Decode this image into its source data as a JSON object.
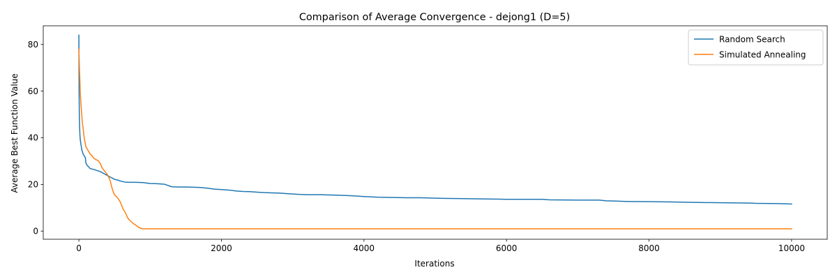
{
  "chart_data": {
    "type": "line",
    "title": "Comparison of Average Convergence - dejong1 (D=5)",
    "xlabel": "Iterations",
    "ylabel": "Average Best Function Value",
    "xlim": [
      -500,
      10500
    ],
    "ylim": [
      -3.5,
      88
    ],
    "xticks": [
      0,
      2000,
      4000,
      6000,
      8000,
      10000
    ],
    "xtick_labels": [
      "0",
      "2000",
      "4000",
      "6000",
      "8000",
      "10000"
    ],
    "yticks": [
      0,
      20,
      40,
      60,
      80
    ],
    "ytick_labels": [
      "0",
      "20",
      "40",
      "60",
      "80"
    ],
    "grid": false,
    "legend_position": "top-right",
    "series": [
      {
        "name": "Random Search",
        "color": "#1f77b4",
        "x": [
          0,
          3,
          6,
          10,
          15,
          20,
          30,
          40,
          50,
          60,
          70,
          90,
          100,
          120,
          140,
          150,
          160,
          200,
          250,
          300,
          330,
          360,
          400,
          450,
          500,
          550,
          600,
          650,
          700,
          800,
          900,
          1000,
          1100,
          1200,
          1300,
          1400,
          1500,
          1600,
          1700,
          1800,
          1900,
          2000,
          2100,
          2200,
          2300,
          2400,
          2500,
          2600,
          2700,
          2800,
          2900,
          3000,
          3100,
          3200,
          3300,
          3400,
          3500,
          3600,
          3700,
          3800,
          3900,
          4000,
          4200,
          4400,
          4600,
          4800,
          5000,
          5200,
          5400,
          5600,
          5900,
          6000,
          6200,
          6500,
          6600,
          7000,
          7300,
          7400,
          7700,
          8000,
          8300,
          8600,
          8900,
          9200,
          9400,
          9500,
          9800,
          10000
        ],
        "values": [
          84,
          60,
          50,
          45,
          41,
          39,
          37,
          35,
          34,
          33,
          32.5,
          31.5,
          29,
          28,
          27.5,
          27,
          26.8,
          26.5,
          26,
          25.5,
          25,
          24.5,
          23.8,
          23,
          22.2,
          21.8,
          21.3,
          21,
          20.9,
          20.9,
          20.8,
          20.4,
          20.3,
          20.1,
          19.0,
          18.9,
          18.9,
          18.8,
          18.7,
          18.4,
          18.0,
          17.8,
          17.6,
          17.2,
          17.0,
          16.9,
          16.7,
          16.5,
          16.4,
          16.3,
          16.1,
          15.9,
          15.7,
          15.6,
          15.6,
          15.6,
          15.5,
          15.4,
          15.3,
          15.2,
          15.0,
          14.8,
          14.5,
          14.4,
          14.3,
          14.3,
          14.1,
          14.0,
          13.9,
          13.8,
          13.7,
          13.6,
          13.6,
          13.6,
          13.4,
          13.3,
          13.3,
          13.0,
          12.7,
          12.6,
          12.5,
          12.3,
          12.2,
          12.1,
          12.0,
          11.9,
          11.8,
          11.6
        ]
      },
      {
        "name": "Simulated Annealing",
        "color": "#ff7f0e",
        "x": [
          0,
          10,
          20,
          30,
          40,
          50,
          60,
          70,
          80,
          100,
          120,
          140,
          160,
          180,
          200,
          220,
          250,
          270,
          300,
          320,
          340,
          360,
          380,
          400,
          420,
          440,
          460,
          480,
          500,
          520,
          550,
          580,
          600,
          620,
          650,
          680,
          700,
          730,
          760,
          800,
          830,
          860,
          880,
          900,
          950,
          1000,
          2000,
          4000,
          6000,
          8000,
          10000
        ],
        "values": [
          78,
          68,
          59,
          54,
          50,
          46,
          44,
          41,
          39,
          36,
          35,
          34,
          33,
          32.5,
          31.5,
          31,
          30.5,
          30.2,
          29,
          27.5,
          26.5,
          25.7,
          25,
          24.2,
          23,
          21.5,
          19,
          17,
          15.5,
          15,
          14,
          12.5,
          11,
          9.5,
          8,
          6,
          5,
          4.2,
          3.3,
          2.5,
          1.8,
          1.3,
          1.1,
          1.0,
          1.0,
          1.0,
          1.0,
          1.0,
          1.0,
          1.0,
          1.0
        ]
      }
    ]
  }
}
